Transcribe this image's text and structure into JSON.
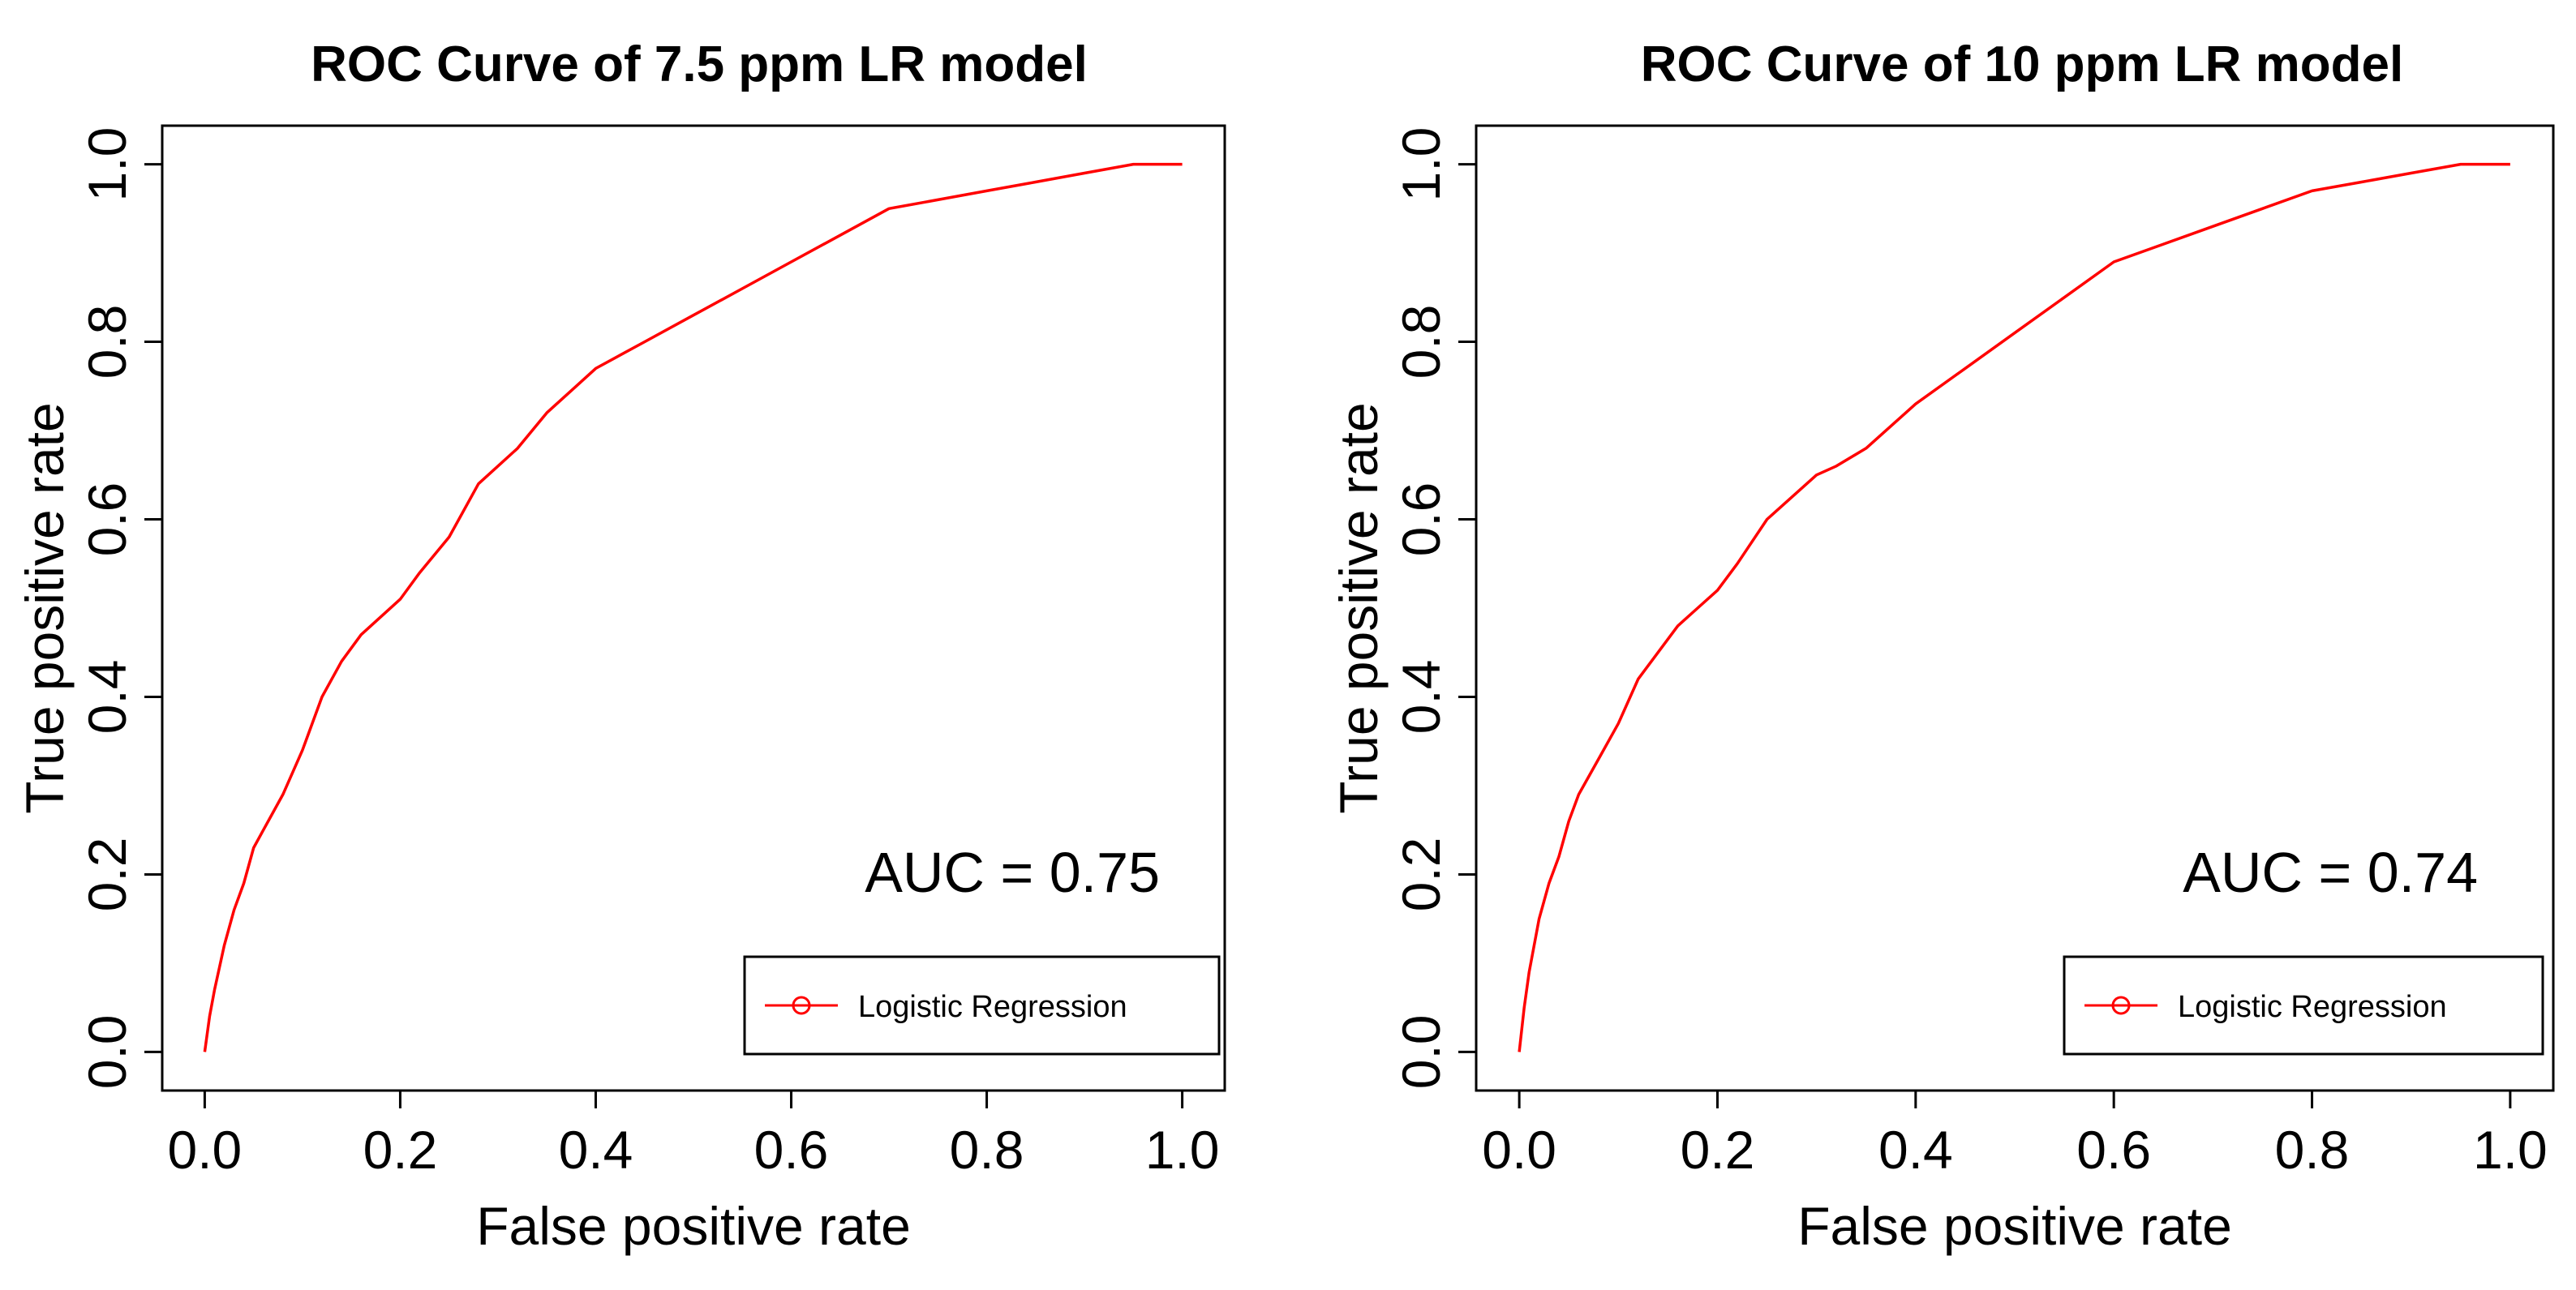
{
  "chart_data": [
    {
      "type": "line",
      "title": "ROC Curve of 7.5 ppm LR model",
      "xlabel": "False positive rate",
      "ylabel": "True positive rate",
      "xlim": [
        0,
        1
      ],
      "ylim": [
        0,
        1
      ],
      "x_ticks": [
        "0.0",
        "0.2",
        "0.4",
        "0.6",
        "0.8",
        "1.0"
      ],
      "y_ticks": [
        "0.0",
        "0.2",
        "0.4",
        "0.6",
        "0.8",
        "1.0"
      ],
      "annotation": "AUC = 0.75",
      "legend": {
        "placement": "bottom-right",
        "entries": [
          "Logistic Regression"
        ]
      },
      "series": [
        {
          "name": "Logistic Regression",
          "color": "#ff0000",
          "x": [
            0,
            0.005,
            0.01,
            0.02,
            0.03,
            0.04,
            0.05,
            0.06,
            0.08,
            0.1,
            0.12,
            0.14,
            0.16,
            0.18,
            0.2,
            0.22,
            0.25,
            0.28,
            0.3,
            0.32,
            0.35,
            0.38,
            0.4,
            0.45,
            0.5,
            0.55,
            0.6,
            0.65,
            0.7,
            0.75,
            0.8,
            0.85,
            0.9,
            0.95,
            1.0
          ],
          "y": [
            0,
            0.04,
            0.07,
            0.12,
            0.16,
            0.19,
            0.23,
            0.25,
            0.29,
            0.34,
            0.4,
            0.44,
            0.47,
            0.49,
            0.51,
            0.54,
            0.58,
            0.64,
            0.66,
            0.68,
            0.72,
            0.75,
            0.77,
            0.8,
            0.83,
            0.86,
            0.89,
            0.92,
            0.95,
            0.96,
            0.97,
            0.98,
            0.99,
            1.0,
            1.0
          ]
        }
      ]
    },
    {
      "type": "line",
      "title": "ROC Curve of 10 ppm LR model",
      "xlabel": "False positive rate",
      "ylabel": "True positive rate",
      "xlim": [
        0,
        1
      ],
      "ylim": [
        0,
        1
      ],
      "x_ticks": [
        "0.0",
        "0.2",
        "0.4",
        "0.6",
        "0.8",
        "1.0"
      ],
      "y_ticks": [
        "0.0",
        "0.2",
        "0.4",
        "0.6",
        "0.8",
        "1.0"
      ],
      "annotation": "AUC = 0.74",
      "legend": {
        "placement": "bottom-right",
        "entries": [
          "Logistic Regression"
        ]
      },
      "series": [
        {
          "name": "Logistic Regression",
          "color": "#ff0000",
          "x": [
            0,
            0.005,
            0.01,
            0.02,
            0.03,
            0.04,
            0.05,
            0.06,
            0.08,
            0.1,
            0.12,
            0.14,
            0.16,
            0.18,
            0.2,
            0.22,
            0.25,
            0.28,
            0.3,
            0.32,
            0.35,
            0.38,
            0.4,
            0.45,
            0.5,
            0.55,
            0.6,
            0.65,
            0.7,
            0.75,
            0.8,
            0.85,
            0.9,
            0.95,
            1.0
          ],
          "y": [
            0,
            0.05,
            0.09,
            0.15,
            0.19,
            0.22,
            0.26,
            0.29,
            0.33,
            0.37,
            0.42,
            0.45,
            0.48,
            0.5,
            0.52,
            0.55,
            0.6,
            0.63,
            0.65,
            0.66,
            0.68,
            0.71,
            0.73,
            0.77,
            0.81,
            0.85,
            0.89,
            0.91,
            0.93,
            0.95,
            0.97,
            0.98,
            0.99,
            1.0,
            1.0
          ]
        }
      ]
    }
  ]
}
